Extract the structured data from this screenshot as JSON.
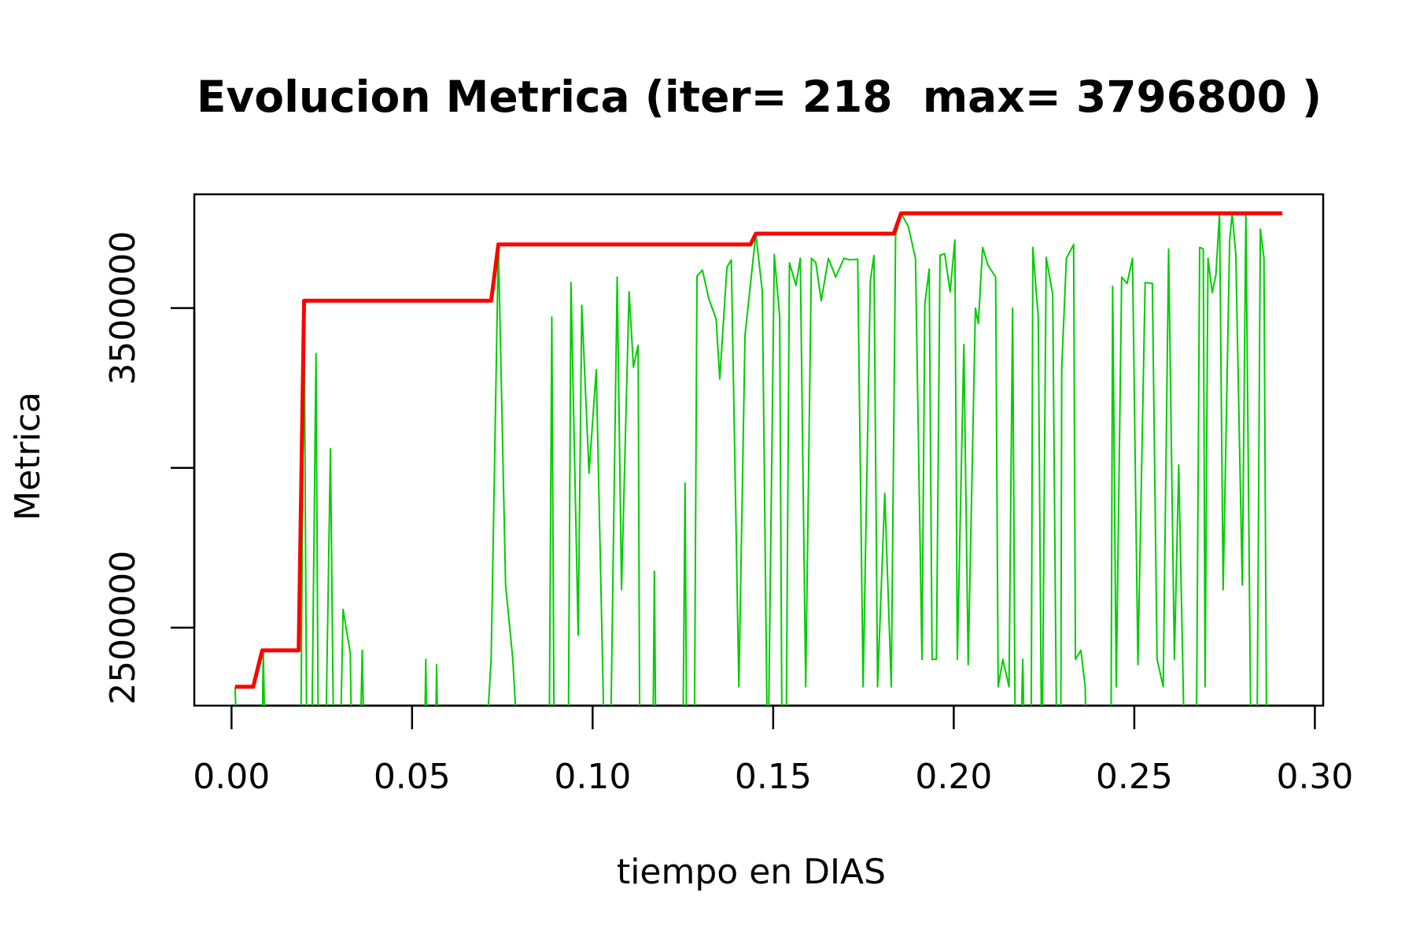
{
  "chart_data": {
    "type": "line",
    "title": "Evolucion Metrica (iter= 218  max= 3796800 )",
    "x_label": "tiempo en DIAS",
    "y_label": "Metrica",
    "xlim": [
      -0.0103,
      0.3023
    ],
    "ylim": [
      2256083,
      3856058
    ],
    "xticks": [
      {
        "value": 0,
        "label": "0.00"
      },
      {
        "value": 0.05,
        "label": "0.05"
      },
      {
        "value": 0.1,
        "label": "0.10"
      },
      {
        "value": 0.15,
        "label": "0.15"
      },
      {
        "value": 0.2,
        "label": "0.20"
      },
      {
        "value": 0.25,
        "label": "0.25"
      },
      {
        "value": 0.3,
        "label": "0.30"
      }
    ],
    "yticks": [
      2500000,
      {
        "value": 3000000,
        "label": null
      },
      3500000
    ],
    "series": [
      {
        "color": "#00cd00",
        "width": 2,
        "x": [
          0.001,
          0.0018,
          0.0083,
          0.0088,
          0.0095,
          0.0191,
          0.0201,
          0.0209,
          0.0221,
          0.0234,
          0.0241,
          0.0259,
          0.0274,
          0.0284,
          0.0299,
          0.0309,
          0.0329,
          0.0334,
          0.0354,
          0.0362,
          0.0369,
          0.0533,
          0.0538,
          0.0543,
          0.0563,
          0.0568,
          0.0573,
          0.0698,
          0.0719,
          0.0739,
          0.0759,
          0.0779,
          0.0799,
          0.0879,
          0.0887,
          0.0894,
          0.0932,
          0.094,
          0.096,
          0.097,
          0.099,
          0.101,
          0.1035,
          0.1048,
          0.1068,
          0.108,
          0.1101,
          0.1113,
          0.1126,
          0.1131,
          0.1166,
          0.1171,
          0.1176,
          0.1249,
          0.1256,
          0.1261,
          0.1281,
          0.1289,
          0.1304,
          0.1322,
          0.1342,
          0.1352,
          0.1372,
          0.1384,
          0.1405,
          0.1422,
          0.1452,
          0.147,
          0.1485,
          0.1503,
          0.1518,
          0.1525,
          0.1535,
          0.1545,
          0.1563,
          0.1575,
          0.159,
          0.1606,
          0.1618,
          0.1633,
          0.1653,
          0.1673,
          0.1696,
          0.1711,
          0.1734,
          0.1749,
          0.1769,
          0.1779,
          0.1789,
          0.1809,
          0.1827,
          0.1839,
          0.1854,
          0.1874,
          0.1894,
          0.1912,
          0.192,
          0.1932,
          0.194,
          0.1952,
          0.1962,
          0.1975,
          0.199,
          0.2003,
          0.201,
          0.2028,
          0.204,
          0.206,
          0.2068,
          0.208,
          0.2095,
          0.2116,
          0.2123,
          0.2136,
          0.2153,
          0.2163,
          0.2171,
          0.2183,
          0.2191,
          0.2198,
          0.2214,
          0.2219,
          0.2234,
          0.2244,
          0.2256,
          0.2274,
          0.2286,
          0.2296,
          0.2299,
          0.2312,
          0.2332,
          0.2337,
          0.2352,
          0.2364,
          0.2369,
          0.2435,
          0.244,
          0.245,
          0.2465,
          0.248,
          0.2495,
          0.251,
          0.253,
          0.255,
          0.2563,
          0.258,
          0.2595,
          0.2611,
          0.2623,
          0.2641,
          0.2671,
          0.2681,
          0.2691,
          0.2696,
          0.2704,
          0.2716,
          0.2726,
          0.2736,
          0.2746,
          0.2764,
          0.2771,
          0.2781,
          0.2799,
          0.2809,
          0.2824,
          0.2839,
          0.2849,
          0.2859,
          0.2867
        ],
        "values": [
          2315000,
          2000000,
          2000000,
          2429000,
          2000000,
          2000000,
          3523000,
          2000000,
          2000000,
          3358000,
          2000000,
          2000000,
          3060000,
          2000000,
          2000000,
          2557000,
          2420000,
          2000000,
          2000000,
          2429000,
          2000000,
          2000000,
          2401000,
          2000000,
          2000000,
          2384000,
          2000000,
          2000000,
          2401000,
          3699000,
          2634000,
          2401000,
          2000000,
          2000000,
          3472000,
          2000000,
          2000000,
          3580000,
          2477000,
          3509000,
          2983000,
          3307000,
          2000000,
          2000000,
          3597000,
          2619000,
          3551000,
          3315000,
          3384000,
          2000000,
          2000000,
          2676000,
          2000000,
          2000000,
          2952000,
          2000000,
          2000000,
          3600000,
          3619000,
          3528000,
          3466000,
          3278000,
          3628000,
          3651000,
          2315000,
          3415000,
          3733000,
          3551000,
          2000000,
          3668000,
          3472000,
          2000000,
          2000000,
          3642000,
          3571000,
          3656000,
          2315000,
          3656000,
          3642000,
          3523000,
          3656000,
          3597000,
          3656000,
          3651000,
          3653000,
          2315000,
          3585000,
          3665000,
          2315000,
          2920000,
          2315000,
          3727000,
          3796800,
          3756000,
          3656000,
          2401000,
          3514000,
          3622000,
          2401000,
          2401000,
          3665000,
          3670000,
          3551000,
          3713000,
          2401000,
          3386000,
          2384000,
          3500000,
          3452000,
          3690000,
          3634000,
          3597000,
          2315000,
          2401000,
          2315000,
          3500000,
          2000000,
          2000000,
          2401000,
          2000000,
          2000000,
          3690000,
          3472000,
          2000000,
          3659000,
          3543000,
          2000000,
          2000000,
          3315000,
          3656000,
          3699000,
          2401000,
          2429000,
          2315000,
          2000000,
          2000000,
          3568000,
          2315000,
          3597000,
          3577000,
          3656000,
          2384000,
          3580000,
          3577000,
          2401000,
          2315000,
          3685000,
          2401000,
          3009000,
          2000000,
          2000000,
          3690000,
          3685000,
          2315000,
          3656000,
          3548000,
          3605000,
          3796800,
          2619000,
          3713000,
          3796800,
          3670000,
          2634000,
          3796800,
          2000000,
          2000000,
          3747000,
          3656000,
          2000000
        ]
      },
      {
        "color": "#ff0000",
        "width": 5,
        "x": [
          0.001,
          0.006,
          0.0085,
          0.0186,
          0.0201,
          0.0719,
          0.0739,
          0.1437,
          0.1452,
          0.1834,
          0.1854,
          0.291
        ],
        "values": [
          2315000,
          2315000,
          2429000,
          2429000,
          3523000,
          3523000,
          3699000,
          3699000,
          3733000,
          3733000,
          3796800,
          3796800
        ]
      }
    ]
  }
}
